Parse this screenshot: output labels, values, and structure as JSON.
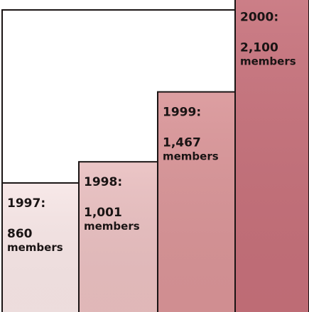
{
  "chart_data": {
    "type": "bar",
    "title": "",
    "xlabel": "",
    "ylabel": "",
    "ylim": [
      0,
      2400
    ],
    "categories": [
      "1997",
      "1998",
      "1999",
      "2000"
    ],
    "values": [
      860,
      1001,
      1467,
      2100
    ],
    "labels": [
      {
        "year": "1997:",
        "value": "860",
        "unit": "members"
      },
      {
        "year": "1998:",
        "value": "1,001",
        "unit": "members"
      },
      {
        "year": "1999:",
        "value": "1,467",
        "unit": "members"
      },
      {
        "year": "2000:",
        "value": "2,100",
        "unit": "members"
      }
    ],
    "colors": [
      "#f7e6e6",
      "#e9bfc0",
      "#d99497",
      "#c6707a"
    ],
    "frame_color": "#1a1414",
    "grid": false,
    "legend": "none"
  }
}
